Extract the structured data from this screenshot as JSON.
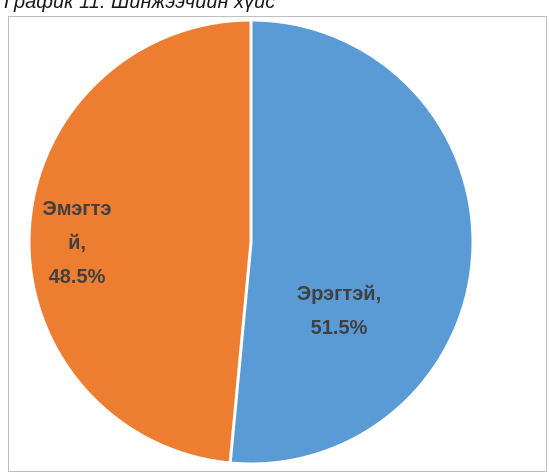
{
  "caption": "График 11. Шинжээчийн хүйс",
  "chart_data": {
    "type": "pie",
    "title": "",
    "slices": [
      {
        "name": "Эрэгтэй",
        "value": 51.5,
        "color": "#5b9bd5",
        "label_lines": [
          "Эрэгтэй,",
          "51.5%"
        ]
      },
      {
        "name": "Эмэгтэй",
        "value": 48.5,
        "color": "#ed7d31",
        "label_lines": [
          "Эмэгтэ",
          "й,",
          "48.5%"
        ]
      }
    ],
    "start_angle_deg": 0,
    "direction": "clockwise",
    "legend": "none",
    "data_labels": "inside"
  }
}
